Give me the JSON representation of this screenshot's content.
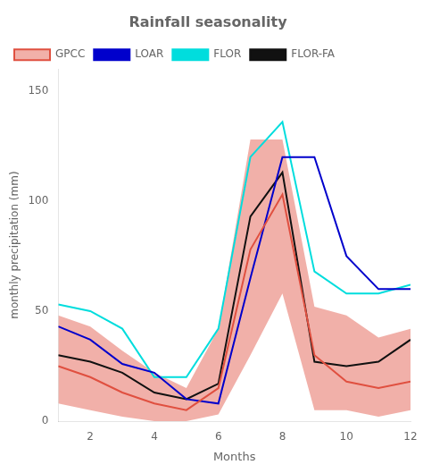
{
  "chart_data": {
    "type": "line",
    "title": "Rainfall seasonality",
    "xlabel": "Months",
    "ylabel": "monthly precipitation (mm)",
    "x": [
      1,
      2,
      3,
      4,
      5,
      6,
      7,
      8,
      9,
      10,
      11,
      12
    ],
    "xlim": [
      1,
      12
    ],
    "xticks": [
      2,
      4,
      6,
      8,
      10,
      12
    ],
    "ylim": [
      0,
      160
    ],
    "yticks": [
      0,
      50,
      100,
      150
    ],
    "grid": false,
    "legend": "upper left",
    "series": [
      {
        "name": "GPCC",
        "color": "#e05040",
        "values": [
          25,
          20,
          13,
          8,
          5,
          15,
          78,
          103,
          30,
          18,
          15,
          18
        ],
        "upper": [
          48,
          43,
          32,
          22,
          15,
          42,
          128,
          128,
          52,
          48,
          38,
          42
        ],
        "lower": [
          8,
          5,
          2,
          0,
          0,
          3,
          30,
          58,
          5,
          5,
          2,
          5
        ]
      },
      {
        "name": "LOAR",
        "color": "#0000cc",
        "values": [
          43,
          37,
          26,
          22,
          10,
          8,
          65,
          120,
          120,
          75,
          60,
          60
        ]
      },
      {
        "name": "FLOR",
        "color": "#00dddd",
        "values": [
          53,
          50,
          42,
          20,
          20,
          42,
          120,
          136,
          68,
          58,
          58,
          62
        ]
      },
      {
        "name": "FLOR-FA",
        "color": "#111111",
        "values": [
          30,
          27,
          22,
          13,
          10,
          17,
          93,
          113,
          27,
          25,
          27,
          37
        ]
      }
    ]
  }
}
